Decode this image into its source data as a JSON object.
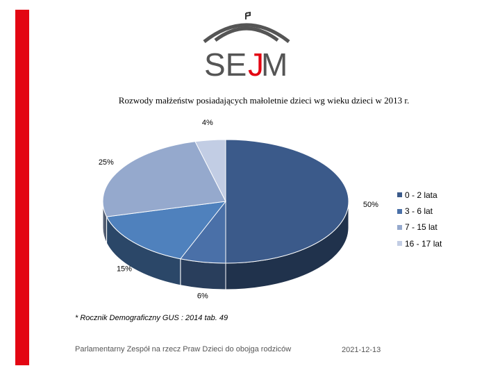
{
  "logo": {
    "text_left": "SE",
    "text_j": "J",
    "text_right": "M"
  },
  "chart_data": {
    "type": "pie",
    "title": "Rozwody małżeństw posiadających małoletnie dzieci wg wieku dzieci w 2013 r.",
    "categories": [
      "0 - 2 lata",
      "3 - 6 lat",
      "7 - 15 lat",
      "16 - 17 lat"
    ],
    "values": [
      50,
      6,
      15,
      25,
      4
    ],
    "slice_categories": [
      "0 - 2 lata",
      "3 - 6 lat",
      "7 - 15 lat",
      "7 - 15 lat",
      "16 - 17 lat"
    ],
    "labels": [
      "50%",
      "6%",
      "15%",
      "25%",
      "4%"
    ],
    "colors": [
      "#3b5a8a",
      "#4a70a8",
      "#4f81bd",
      "#95a9cd",
      "#c2cde4"
    ],
    "legend": [
      {
        "label": "0 - 2 lata",
        "color": "#3b5a8a"
      },
      {
        "label": "3 - 6 lat",
        "color": "#4a70a8"
      },
      {
        "label": "7 - 15 lat",
        "color": "#95a9cd"
      },
      {
        "label": "16 - 17  lat",
        "color": "#c2cde4"
      }
    ],
    "legend_position": "right",
    "style": "3d-pie"
  },
  "source_note": "* Rocznik Demograficzny  GUS : 2014  tab. 49",
  "footer": {
    "left": "Parlamentarny Zespół na rzecz Praw Dzieci do obojga rodziców",
    "right": "2021-12-13"
  }
}
